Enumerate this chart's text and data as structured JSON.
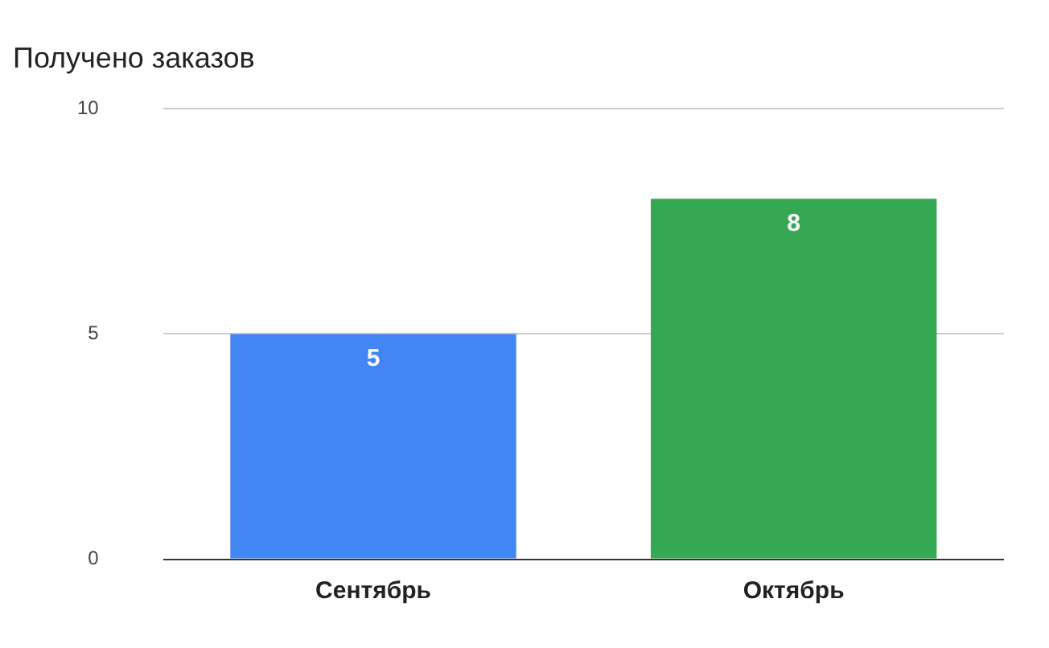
{
  "chart_data": {
    "type": "bar",
    "title": "Получено заказов",
    "categories": [
      "Сентябрь",
      "Октябрь"
    ],
    "values": [
      5,
      8
    ],
    "colors": [
      "#4285f4",
      "#34a853"
    ],
    "ylim": [
      0,
      10
    ],
    "yticks": [
      0,
      5,
      10
    ],
    "grid": "y",
    "data_labels": true,
    "legend": false
  }
}
